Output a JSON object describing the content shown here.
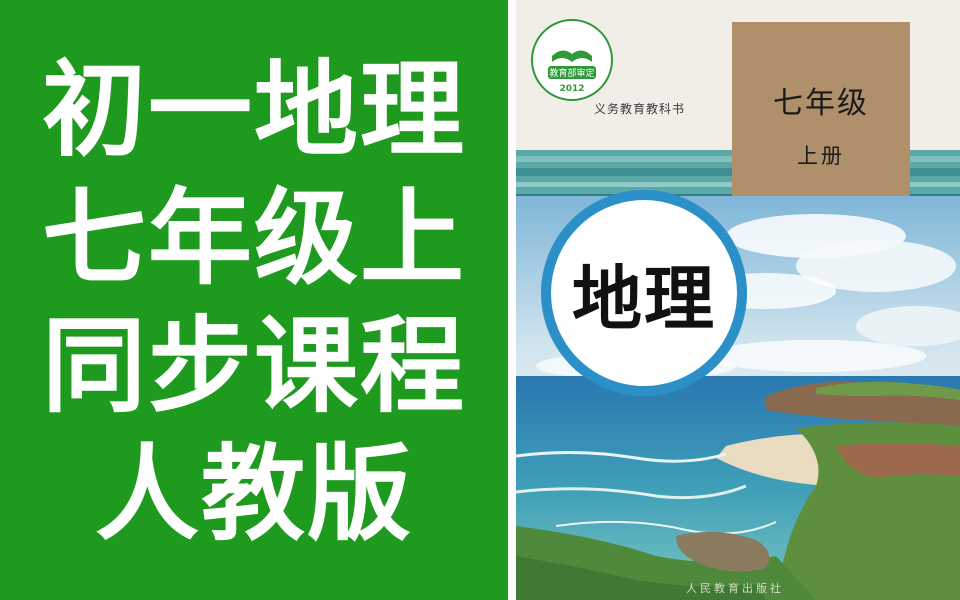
{
  "thumbnail": {
    "title_lines": [
      "初一地理",
      "七年级上",
      "同步课程",
      "人教版"
    ]
  },
  "cover": {
    "seal_text": "教育部审定",
    "seal_year": "2012",
    "series": "义务教育教科书",
    "grade": "七年级",
    "volume": "上册",
    "subject": "地理",
    "publisher": "人民教育出版社"
  },
  "colors": {
    "panel_green": "#1e9a1e",
    "title_text": "#ffffff",
    "grade_box": "#b0906a",
    "circle_ring": "#2b8fc8",
    "seal_green": "#2e9a3a"
  }
}
